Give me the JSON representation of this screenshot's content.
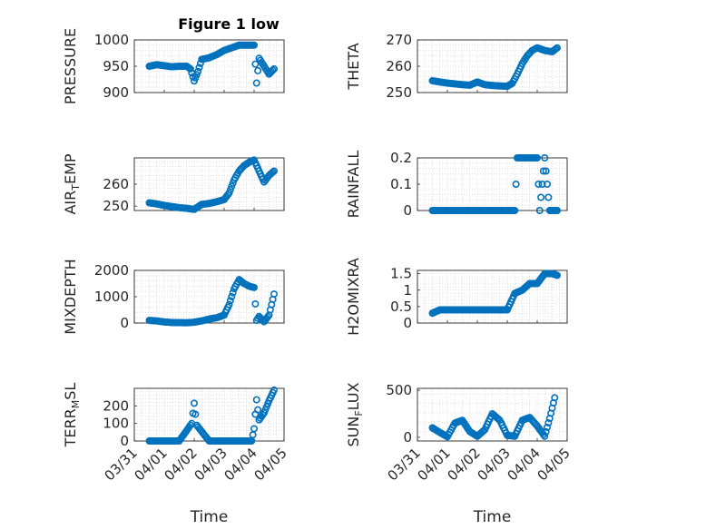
{
  "figure": {
    "title": "Figure 1 low",
    "marker_color": "#0072BD",
    "grid": true
  },
  "chart_data": [
    {
      "type": "scatter",
      "title": "Figure 1 low",
      "ylabel": {
        "base": "PRESSURE",
        "sub": ""
      },
      "xlabel": "",
      "ylim": [
        900,
        1000
      ],
      "yticks": [
        900,
        950,
        1000
      ],
      "ytick_labels": [
        "900",
        "950",
        "1000"
      ],
      "xlim": [
        "03/31",
        "04/05"
      ],
      "show_xticklabels": false,
      "x": [
        "03/31 12:00",
        "03/31 18:00",
        "04/01 00:00",
        "04/01 06:00",
        "04/01 12:00",
        "04/01 18:00",
        "04/01 21:00",
        "04/02 00:00",
        "04/02 03:00",
        "04/02 06:00",
        "04/02 12:00",
        "04/02 18:00",
        "04/03 00:00",
        "04/03 06:00",
        "04/03 12:00",
        "04/03 18:00",
        "04/04 00:00",
        "04/04 02:00",
        "04/04 04:00",
        "04/04 08:00",
        "04/04 12:00",
        "04/04 16:00"
      ],
      "y": [
        950,
        953,
        951,
        949,
        950,
        950,
        945,
        922,
        940,
        963,
        966,
        972,
        980,
        985,
        990,
        990,
        990,
        918,
        965,
        950,
        935,
        945
      ]
    },
    {
      "type": "scatter",
      "title": "",
      "ylabel": {
        "base": "THETA",
        "sub": ""
      },
      "xlabel": "",
      "ylim": [
        250,
        270
      ],
      "yticks": [
        250,
        260,
        270
      ],
      "ytick_labels": [
        "250",
        "260",
        "270"
      ],
      "xlim": [
        "03/31",
        "04/05"
      ],
      "show_xticklabels": false,
      "x": [
        "03/31 12:00",
        "03/31 18:00",
        "04/01 00:00",
        "04/01 06:00",
        "04/01 12:00",
        "04/01 18:00",
        "04/02 00:00",
        "04/02 06:00",
        "04/02 12:00",
        "04/02 18:00",
        "04/03 00:00",
        "04/03 04:00",
        "04/03 08:00",
        "04/03 12:00",
        "04/03 16:00",
        "04/03 20:00",
        "04/04 00:00",
        "04/04 06:00",
        "04/04 12:00",
        "04/04 16:00"
      ],
      "y": [
        254.5,
        254,
        253.6,
        253.3,
        253,
        252.8,
        254,
        253,
        252.7,
        252.5,
        252.4,
        253.5,
        257,
        261,
        264,
        266,
        267,
        266,
        265.5,
        267
      ]
    },
    {
      "type": "scatter",
      "title": "",
      "ylabel": {
        "base": "AIR",
        "sub": "T",
        "rest": "EMP"
      },
      "xlabel": "",
      "ylim": [
        248,
        272
      ],
      "yticks": [
        250,
        260
      ],
      "ytick_labels": [
        "250",
        "260"
      ],
      "xlim": [
        "03/31",
        "04/05"
      ],
      "show_xticklabels": false,
      "x": [
        "03/31 12:00",
        "03/31 18:00",
        "04/01 00:00",
        "04/01 06:00",
        "04/01 12:00",
        "04/01 18:00",
        "04/02 00:00",
        "04/02 06:00",
        "04/02 12:00",
        "04/02 18:00",
        "04/03 00:00",
        "04/03 04:00",
        "04/03 08:00",
        "04/03 12:00",
        "04/03 16:00",
        "04/03 20:00",
        "04/04 00:00",
        "04/04 04:00",
        "04/04 08:00",
        "04/04 12:00",
        "04/04 16:00"
      ],
      "y": [
        251.5,
        251,
        250.3,
        249.8,
        249.3,
        249,
        248.5,
        250.8,
        251.2,
        252,
        253,
        256,
        262,
        266,
        268.5,
        270,
        271,
        266,
        261,
        264,
        266
      ]
    },
    {
      "type": "scatter",
      "title": "",
      "ylabel": {
        "base": "RAINFALL",
        "sub": ""
      },
      "xlabel": "",
      "ylim": [
        0,
        0.2
      ],
      "yticks": [
        0,
        0.1,
        0.2
      ],
      "ytick_labels": [
        "0",
        "0.1",
        "0.2"
      ],
      "xlim": [
        "03/31",
        "04/05"
      ],
      "show_xticklabels": false,
      "x": [
        "03/31 12:00",
        "04/01 00:00",
        "04/01 12:00",
        "04/02 00:00",
        "04/02 12:00",
        "04/03 00:00",
        "04/03 06:00",
        "04/03 08:00",
        "04/03 12:00",
        "04/03 16:00",
        "04/03 20:00",
        "04/04 00:00",
        "04/04 02:00",
        "04/04 06:00",
        "04/04 10:00",
        "04/04 16:00"
      ],
      "y": [
        0,
        0,
        0,
        0,
        0,
        0,
        0,
        0.2,
        0.2,
        0.2,
        0.2,
        0.2,
        0,
        0.2,
        0,
        0
      ]
    },
    {
      "type": "scatter",
      "title": "",
      "ylabel": {
        "base": "MIXDEPTH",
        "sub": ""
      },
      "xlabel": "",
      "ylim": [
        0,
        2000
      ],
      "yticks": [
        0,
        1000,
        2000
      ],
      "ytick_labels": [
        "0",
        "1000",
        "2000"
      ],
      "xlim": [
        "03/31",
        "04/05"
      ],
      "show_xticklabels": false,
      "x": [
        "03/31 12:00",
        "03/31 18:00",
        "04/01 00:00",
        "04/01 06:00",
        "04/01 12:00",
        "04/01 18:00",
        "04/02 00:00",
        "04/02 06:00",
        "04/02 12:00",
        "04/02 18:00",
        "04/03 00:00",
        "04/03 04:00",
        "04/03 08:00",
        "04/03 12:00",
        "04/03 16:00",
        "04/03 20:00",
        "04/04 00:00",
        "04/04 02:00",
        "04/04 04:00",
        "04/04 08:00",
        "04/04 12:00",
        "04/04 16:00"
      ],
      "y": [
        100,
        80,
        40,
        20,
        15,
        10,
        30,
        80,
        150,
        200,
        300,
        700,
        1300,
        1650,
        1500,
        1400,
        1350,
        100,
        250,
        50,
        300,
        1100
      ]
    },
    {
      "type": "scatter",
      "title": "",
      "ylabel": {
        "base": "H2OMIXRA",
        "sub": ""
      },
      "xlabel": "",
      "ylim": [
        0,
        1.6
      ],
      "yticks": [
        0,
        0.5,
        1,
        1.5
      ],
      "ytick_labels": [
        "0",
        "0.5",
        "1",
        "1.5"
      ],
      "xlim": [
        "03/31",
        "04/05"
      ],
      "show_xticklabels": false,
      "x": [
        "03/31 12:00",
        "03/31 18:00",
        "04/01 00:00",
        "04/01 06:00",
        "04/01 12:00",
        "04/01 18:00",
        "04/02 00:00",
        "04/02 06:00",
        "04/02 12:00",
        "04/02 18:00",
        "04/03 00:00",
        "04/03 06:00",
        "04/03 12:00",
        "04/03 18:00",
        "04/04 00:00",
        "04/04 06:00",
        "04/04 12:00",
        "04/04 16:00"
      ],
      "y": [
        0.3,
        0.4,
        0.4,
        0.4,
        0.4,
        0.4,
        0.4,
        0.4,
        0.4,
        0.4,
        0.4,
        0.9,
        1.0,
        1.2,
        1.2,
        1.5,
        1.5,
        1.45
      ]
    },
    {
      "type": "scatter",
      "title": "",
      "ylabel": {
        "base": "TERR",
        "sub": "M",
        "rest": "SL"
      },
      "xlabel": "Time",
      "ylim": [
        0,
        300
      ],
      "yticks": [
        0,
        100,
        200
      ],
      "ytick_labels": [
        "0",
        "100",
        "200"
      ],
      "xlim": [
        "03/31",
        "04/05"
      ],
      "show_xticklabels": true,
      "xtick_labels": [
        "03/31",
        "04/01",
        "04/02",
        "04/03",
        "04/04",
        "04/05"
      ],
      "x": [
        "03/31 12:00",
        "04/01 00:00",
        "04/01 12:00",
        "04/01 22:00",
        "04/02 00:00",
        "04/02 02:00",
        "04/02 12:00",
        "04/03 00:00",
        "04/03 12:00",
        "04/03 22:00",
        "04/04 00:00",
        "04/04 02:00",
        "04/04 04:00",
        "04/04 08:00",
        "04/04 12:00",
        "04/04 16:00"
      ],
      "y": [
        0,
        0,
        0,
        100,
        215,
        90,
        0,
        0,
        0,
        0,
        70,
        235,
        120,
        160,
        230,
        290
      ]
    },
    {
      "type": "scatter",
      "title": "",
      "ylabel": {
        "base": "SUN",
        "sub": "F",
        "rest": "LUX"
      },
      "xlabel": "Time",
      "ylim": [
        -40,
        520
      ],
      "yticks": [
        0,
        500
      ],
      "ytick_labels": [
        "0",
        "500"
      ],
      "xlim": [
        "03/31",
        "04/05"
      ],
      "show_xticklabels": true,
      "xtick_labels": [
        "03/31",
        "04/01",
        "04/02",
        "04/03",
        "04/04",
        "04/05"
      ],
      "x": [
        "03/31 12:00",
        "03/31 18:00",
        "04/01 00:00",
        "04/01 06:00",
        "04/01 12:00",
        "04/01 18:00",
        "04/02 00:00",
        "04/02 06:00",
        "04/02 12:00",
        "04/02 18:00",
        "04/03 00:00",
        "04/03 06:00",
        "04/03 12:00",
        "04/03 18:00",
        "04/04 00:00",
        "04/04 06:00",
        "04/04 10:00",
        "04/04 14:00"
      ],
      "y": [
        100,
        50,
        5,
        150,
        180,
        60,
        10,
        80,
        250,
        180,
        20,
        10,
        180,
        210,
        120,
        10,
        200,
        420
      ]
    }
  ]
}
